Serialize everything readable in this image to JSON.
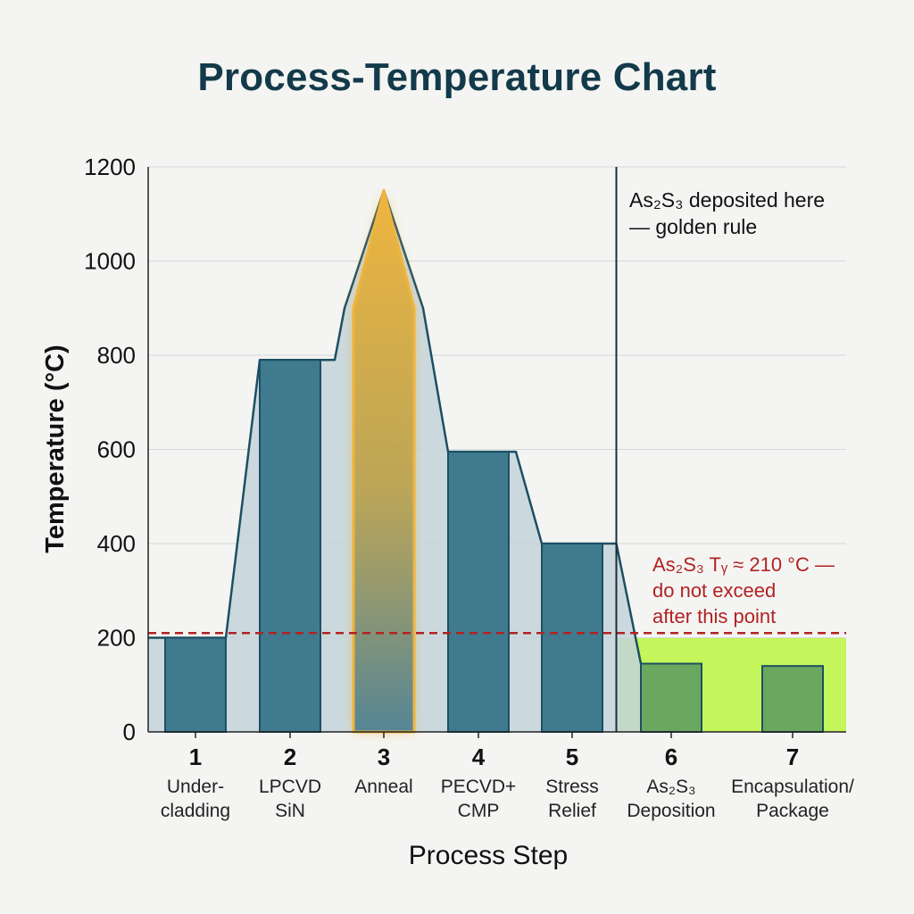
{
  "title": "Process-Temperature Chart",
  "chart_data": {
    "type": "bar",
    "xlabel": "Process Step",
    "ylabel": "Temperature (°C)",
    "ylim": [
      0,
      1200
    ],
    "yticks": [
      0,
      200,
      400,
      600,
      800,
      1000,
      1200
    ],
    "grid": true,
    "categories": [
      {
        "number": "1",
        "name_lines": [
          "Under-",
          "cladding"
        ]
      },
      {
        "number": "2",
        "name_lines": [
          "LPCVD",
          "SiN"
        ]
      },
      {
        "number": "3",
        "name_lines": [
          "Anneal"
        ]
      },
      {
        "number": "4",
        "name_lines": [
          "PECVD+",
          "CMP"
        ]
      },
      {
        "number": "5",
        "name_lines": [
          "Stress",
          "Relief"
        ]
      },
      {
        "number": "6",
        "name_lines": [
          "As₂S₃",
          "Deposition"
        ]
      },
      {
        "number": "7",
        "name_lines": [
          "Encapsulation/",
          "Package"
        ]
      }
    ],
    "values": [
      200,
      790,
      1150,
      595,
      400,
      145,
      140
    ],
    "highlighted_step": "3",
    "threshold": {
      "value": 210,
      "label_lines": [
        "As₂S₃ Tᵧ ≈ 210 °C —",
        "do not exceed",
        "after this point"
      ],
      "color": "#b22222"
    },
    "marker": {
      "after_step": "5",
      "label_lines": [
        "As₂S₃ deposited here",
        "— golden rule"
      ]
    },
    "colors": {
      "bar": "#3f7a8f",
      "bar_edge": "#1d4f63",
      "post_bar": "#6aa860",
      "highlight": "#f0b43a",
      "safe_zone": "#c4f55a",
      "envelope": "#c3d3da",
      "title": "#133a4a"
    }
  }
}
